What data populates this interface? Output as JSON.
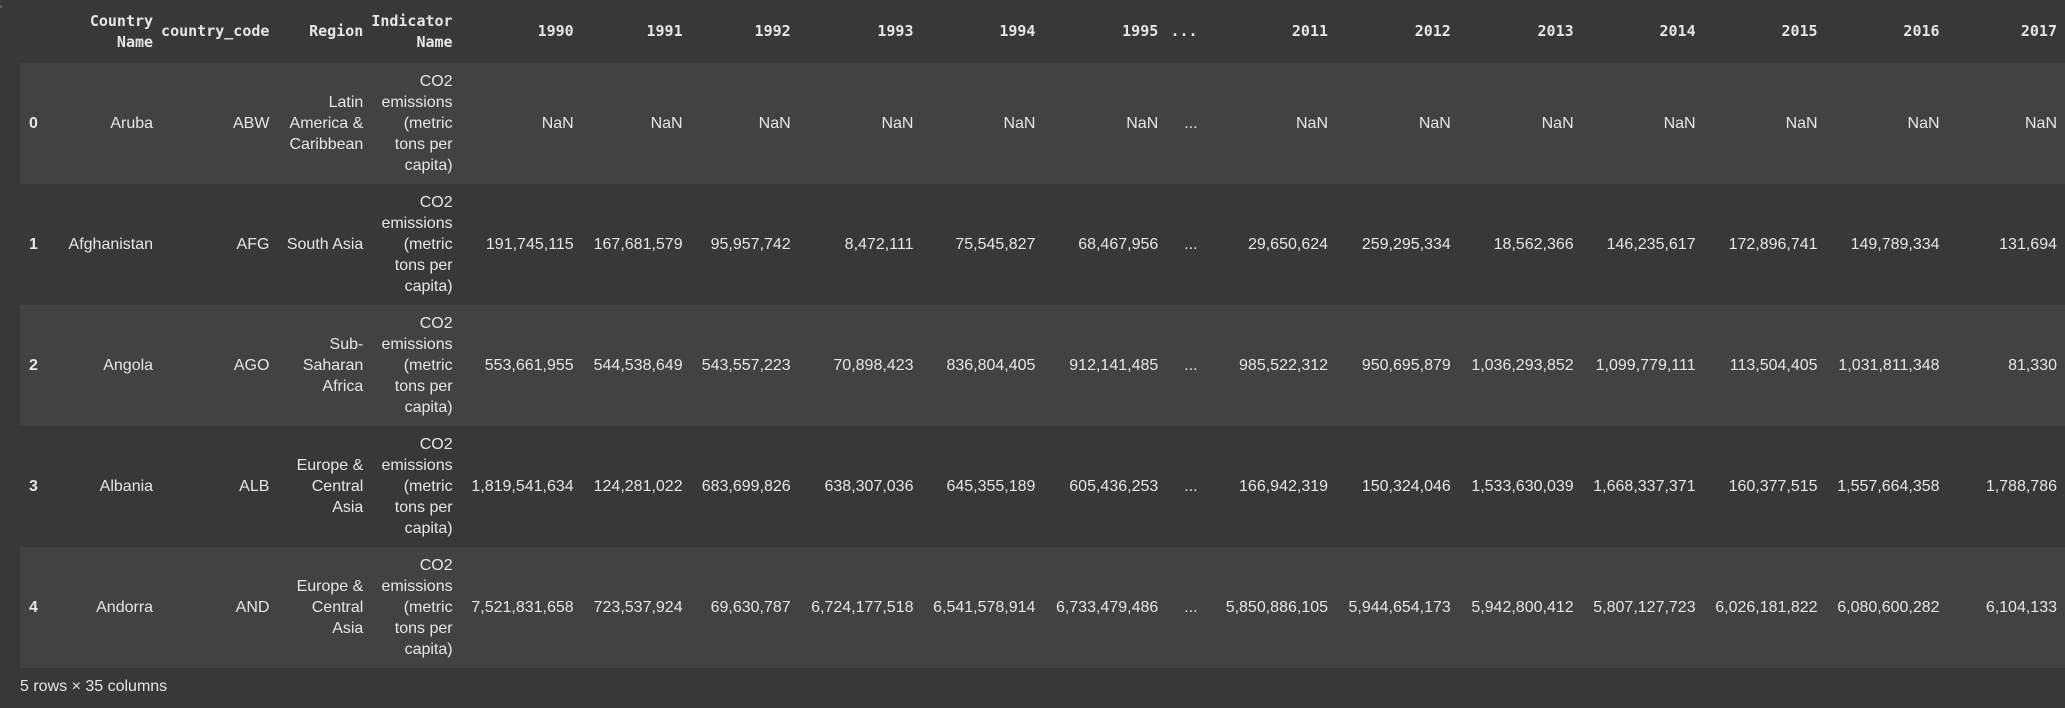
{
  "gutter": {
    "mark": "'"
  },
  "table": {
    "columns": [
      "Country Name",
      "country_code",
      "Region",
      "Indicator Name",
      "1990",
      "1991",
      "1992",
      "1993",
      "1994",
      "1995",
      "...",
      "2011",
      "2012",
      "2013",
      "2014",
      "2015",
      "2016",
      "2017"
    ],
    "rows": [
      {
        "index": "0",
        "cells": [
          "Aruba",
          "ABW",
          "Latin America & Caribbean",
          "CO2 emissions (metric tons per capita)",
          "NaN",
          "NaN",
          "NaN",
          "NaN",
          "NaN",
          "NaN",
          "...",
          "NaN",
          "NaN",
          "NaN",
          "NaN",
          "NaN",
          "NaN",
          "NaN"
        ]
      },
      {
        "index": "1",
        "cells": [
          "Afghanistan",
          "AFG",
          "South Asia",
          "CO2 emissions (metric tons per capita)",
          "191,745,115",
          "167,681,579",
          "95,957,742",
          "8,472,111",
          "75,545,827",
          "68,467,956",
          "...",
          "29,650,624",
          "259,295,334",
          "18,562,366",
          "146,235,617",
          "172,896,741",
          "149,789,334",
          "131,694"
        ]
      },
      {
        "index": "2",
        "cells": [
          "Angola",
          "AGO",
          "Sub-Saharan Africa",
          "CO2 emissions (metric tons per capita)",
          "553,661,955",
          "544,538,649",
          "543,557,223",
          "70,898,423",
          "836,804,405",
          "912,141,485",
          "...",
          "985,522,312",
          "950,695,879",
          "1,036,293,852",
          "1,099,779,111",
          "113,504,405",
          "1,031,811,348",
          "81,330"
        ]
      },
      {
        "index": "3",
        "cells": [
          "Albania",
          "ALB",
          "Europe & Central Asia",
          "CO2 emissions (metric tons per capita)",
          "1,819,541,634",
          "124,281,022",
          "683,699,826",
          "638,307,036",
          "645,355,189",
          "605,436,253",
          "...",
          "166,942,319",
          "150,324,046",
          "1,533,630,039",
          "1,668,337,371",
          "160,377,515",
          "1,557,664,358",
          "1,788,786"
        ]
      },
      {
        "index": "4",
        "cells": [
          "Andorra",
          "AND",
          "Europe & Central Asia",
          "CO2 emissions (metric tons per capita)",
          "7,521,831,658",
          "723,537,924",
          "69,630,787",
          "6,724,177,518",
          "6,541,578,914",
          "6,733,479,486",
          "...",
          "5,850,886,105",
          "5,944,654,173",
          "5,942,800,412",
          "5,807,127,723",
          "6,026,181,822",
          "6,080,600,282",
          "6,104,133"
        ]
      }
    ]
  },
  "footer": {
    "shape_text": "5 rows × 35 columns"
  },
  "colors": {
    "background": "#383838",
    "row_striped": "#424242",
    "text": "#e6e6e6"
  }
}
